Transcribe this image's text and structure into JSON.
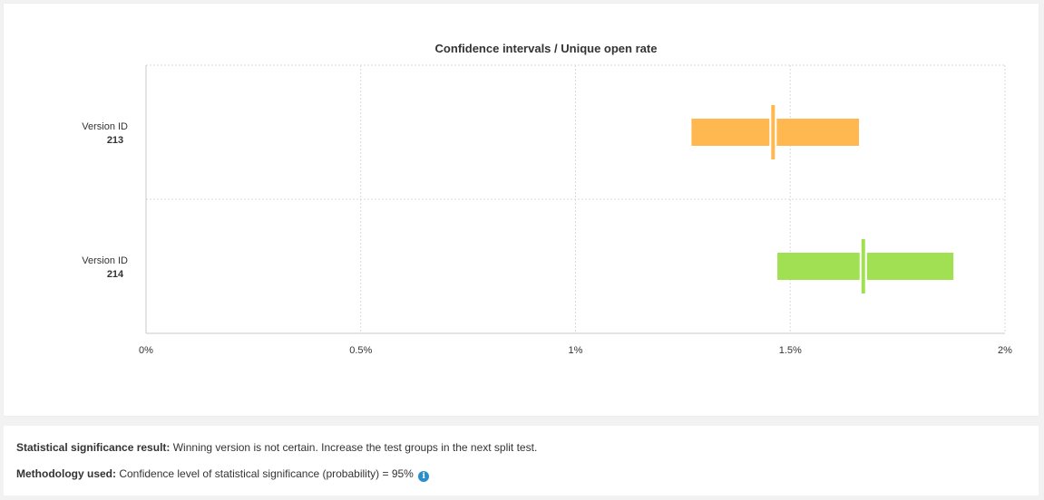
{
  "chart_data": {
    "type": "confidence-interval",
    "title": "Confidence intervals / Unique open rate",
    "x_ticks": [
      "0%",
      "0.5%",
      "1%",
      "1.5%",
      "2%"
    ],
    "xlim": [
      0,
      2
    ],
    "grid": true,
    "categories": [
      {
        "label": "Version ID",
        "id": "213"
      },
      {
        "label": "Version ID",
        "id": "214"
      }
    ],
    "series": [
      {
        "low": 1.27,
        "high": 1.66,
        "point": 1.46,
        "color": "#ffb850"
      },
      {
        "low": 1.47,
        "high": 1.88,
        "point": 1.67,
        "color": "#a1e053"
      }
    ]
  },
  "info": {
    "significance_label": "Statistical significance result:",
    "significance_text": "Winning version is not certain. Increase the test groups in the next split test.",
    "methodology_label": "Methodology used:",
    "methodology_text": "Confidence level of statistical significance (probability) = 95%",
    "info_icon": "info-circle-icon"
  }
}
